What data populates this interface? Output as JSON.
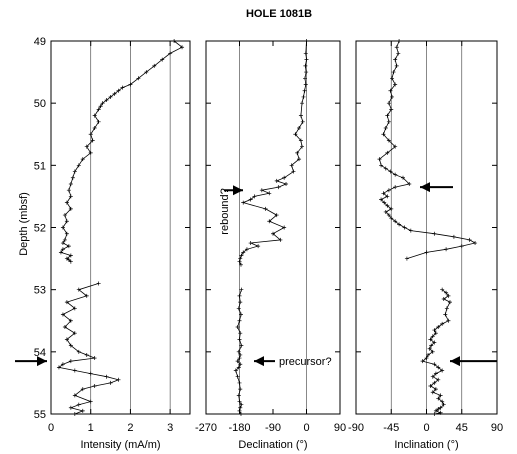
{
  "chart_data": {
    "title": "HOLE 1081B",
    "ylabel": "Depth (mbsf)",
    "y_ticks": [
      "49",
      "50",
      "51",
      "52",
      "53",
      "54",
      "55"
    ],
    "ylim": [
      49,
      55
    ],
    "y_inverted": true,
    "line_color": "#000000",
    "gridlines": "vertical",
    "panels": [
      {
        "type": "line",
        "xlabel": "Intensity (mA/m)",
        "xlim": [
          0,
          3.5
        ],
        "x_ticks": [
          0,
          1,
          2,
          3
        ],
        "x_tick_labels": [
          "0",
          "1",
          "2",
          "3"
        ],
        "grid_x": [
          1,
          2,
          3
        ],
        "series": [
          {
            "segments": [
              {
                "x": [
                  3.1,
                  3.3,
                  3.0,
                  2.8,
                  2.6,
                  2.4,
                  2.2,
                  2.0,
                  1.8,
                  1.7,
                  1.6,
                  1.5,
                  1.4,
                  1.3,
                  1.25,
                  1.2,
                  1.1,
                  1.2,
                  1.1,
                  1.0,
                  1.05,
                  0.9,
                  1.0,
                  0.8,
                  0.7,
                  0.6,
                  0.55,
                  0.5,
                  0.45,
                  0.5,
                  0.4,
                  0.5,
                  0.35,
                  0.4,
                  0.3,
                  0.4,
                  0.35,
                  0.3,
                  0.45,
                  0.3,
                  0.25,
                  0.5,
                  0.4,
                  0.45,
                  0.5
                ],
                "depth": [
                  49.0,
                  49.1,
                  49.2,
                  49.3,
                  49.4,
                  49.5,
                  49.6,
                  49.7,
                  49.75,
                  49.8,
                  49.85,
                  49.9,
                  49.95,
                  50.0,
                  50.05,
                  50.1,
                  50.2,
                  50.3,
                  50.4,
                  50.5,
                  50.6,
                  50.7,
                  50.8,
                  50.9,
                  51.0,
                  51.1,
                  51.2,
                  51.3,
                  51.4,
                  51.5,
                  51.6,
                  51.7,
                  51.8,
                  51.9,
                  52.0,
                  52.1,
                  52.2,
                  52.25,
                  52.3,
                  52.35,
                  52.4,
                  52.45,
                  52.5,
                  52.52,
                  52.55
                ]
              },
              {
                "x": [
                  1.2,
                  0.7,
                  0.9,
                  0.4,
                  0.6,
                  0.3,
                  0.5,
                  0.35,
                  0.6,
                  0.4,
                  0.5,
                  0.7,
                  0.9,
                  1.1,
                  0.5,
                  0.3,
                  0.2,
                  0.6,
                  1.0,
                  1.4,
                  1.7,
                  1.5,
                  1.1,
                  0.8,
                  0.6,
                  1.0,
                  0.7,
                  0.5,
                  0.8,
                  0.6
                ],
                "depth": [
                  52.9,
                  53.0,
                  53.1,
                  53.2,
                  53.3,
                  53.4,
                  53.5,
                  53.6,
                  53.7,
                  53.8,
                  53.9,
                  54.0,
                  54.05,
                  54.1,
                  54.15,
                  54.2,
                  54.25,
                  54.3,
                  54.35,
                  54.4,
                  54.45,
                  54.5,
                  54.55,
                  54.6,
                  54.7,
                  54.8,
                  54.85,
                  54.9,
                  54.95,
                  55.0
                ]
              }
            ]
          }
        ],
        "annotations": [
          {
            "type": "arrow",
            "depth": 54.15,
            "pointing": "right",
            "side": "left"
          }
        ]
      },
      {
        "type": "line",
        "xlabel": "Declination (°)",
        "xlim": [
          -270,
          90
        ],
        "x_ticks": [
          -270,
          -180,
          -90,
          0,
          90
        ],
        "x_tick_labels": [
          "-270",
          "-180",
          "-90",
          "0",
          "90"
        ],
        "grid_x": [
          -180,
          0
        ],
        "series": [
          {
            "segments": [
              {
                "x": [
                  0,
                  -2,
                  0,
                  -3,
                  -1,
                  -4,
                  -2,
                  -5,
                  -8,
                  -12,
                  -15,
                  -10,
                  -20,
                  -30,
                  -15,
                  -12,
                  -25,
                  -20,
                  -40,
                  -35,
                  -60,
                  -80,
                  -55,
                  -75,
                  -120,
                  -100,
                  -140,
                  -150,
                  -170,
                  -110,
                  -80,
                  -100,
                  -60,
                  -90,
                  -70,
                  -150,
                  -130,
                  -160,
                  -170,
                  -175,
                  -178,
                  -180,
                  -176
                ],
                "depth": [
                  49.0,
                  49.2,
                  49.3,
                  49.4,
                  49.5,
                  49.6,
                  49.7,
                  49.8,
                  49.9,
                  50.0,
                  50.2,
                  50.3,
                  50.4,
                  50.5,
                  50.6,
                  50.7,
                  50.8,
                  50.9,
                  51.0,
                  51.1,
                  51.2,
                  51.25,
                  51.3,
                  51.35,
                  51.4,
                  51.45,
                  51.5,
                  51.55,
                  51.6,
                  51.7,
                  51.8,
                  51.9,
                  52.0,
                  52.1,
                  52.2,
                  52.25,
                  52.3,
                  52.35,
                  52.4,
                  52.45,
                  52.5,
                  52.55,
                  52.6
                ]
              },
              {
                "x": [
                  -175,
                  -180,
                  -178,
                  -182,
                  -176,
                  -180,
                  -185,
                  -178,
                  -180,
                  -175,
                  -182,
                  -178,
                  -180,
                  -185,
                  -178,
                  -182,
                  -190,
                  -185,
                  -180,
                  -178,
                  -182,
                  -180,
                  -175,
                  -178,
                  -180,
                  -176
                ],
                "depth": [
                  53.0,
                  53.1,
                  53.2,
                  53.3,
                  53.4,
                  53.5,
                  53.6,
                  53.7,
                  53.8,
                  53.9,
                  54.0,
                  54.05,
                  54.1,
                  54.15,
                  54.2,
                  54.25,
                  54.3,
                  54.4,
                  54.5,
                  54.6,
                  54.7,
                  54.8,
                  54.85,
                  54.9,
                  54.95,
                  55.0
                ]
              }
            ]
          }
        ],
        "annotations": [
          {
            "type": "arrow",
            "depth": 51.4,
            "pointing": "right",
            "label": "rebound?",
            "label_rotated": true
          },
          {
            "type": "arrow",
            "depth": 54.15,
            "pointing": "left",
            "label": "precursor?"
          }
        ]
      },
      {
        "type": "line",
        "xlabel": "Inclination (°)",
        "xlim": [
          -90,
          90
        ],
        "x_ticks": [
          -90,
          -45,
          0,
          45,
          90
        ],
        "x_tick_labels": [
          "-90",
          "-45",
          "0",
          "45",
          "90"
        ],
        "grid_x": [
          -45,
          0,
          45
        ],
        "series": [
          {
            "segments": [
              {
                "x": [
                  -35,
                  -38,
                  -36,
                  -40,
                  -38,
                  -42,
                  -44,
                  -40,
                  -46,
                  -44,
                  -48,
                  -45,
                  -50,
                  -48,
                  -52,
                  -55,
                  -48,
                  -40,
                  -50,
                  -60,
                  -58,
                  -52,
                  -46,
                  -40,
                  -30,
                  -22,
                  -40,
                  -48,
                  -55,
                  -50,
                  -58,
                  -54,
                  -50,
                  -45,
                  -52,
                  -48,
                  -45,
                  -40,
                  -35,
                  -28,
                  -20,
                  10,
                  35,
                  55,
                  62,
                  45,
                  25,
                  0,
                  -25
                ],
                "depth": [
                  49.0,
                  49.1,
                  49.2,
                  49.3,
                  49.4,
                  49.5,
                  49.6,
                  49.7,
                  49.8,
                  49.9,
                  50.0,
                  50.1,
                  50.2,
                  50.3,
                  50.4,
                  50.5,
                  50.6,
                  50.7,
                  50.8,
                  50.9,
                  51.0,
                  51.05,
                  51.1,
                  51.15,
                  51.2,
                  51.3,
                  51.35,
                  51.4,
                  51.45,
                  51.5,
                  51.55,
                  51.6,
                  51.65,
                  51.7,
                  51.75,
                  51.8,
                  51.85,
                  51.9,
                  51.95,
                  52.0,
                  52.05,
                  52.1,
                  52.15,
                  52.2,
                  52.25,
                  52.3,
                  52.35,
                  52.4,
                  52.5
                ]
              },
              {
                "x": [
                  20,
                  25,
                  28,
                  22,
                  30,
                  26,
                  24,
                  28,
                  20,
                  15,
                  10,
                  12,
                  8,
                  5,
                  10,
                  6,
                  4,
                  8,
                  2,
                  0,
                  -5,
                  10,
                  15,
                  20,
                  12,
                  8,
                  15,
                  10,
                  5,
                  12,
                  8,
                  18,
                  15,
                  20,
                  22,
                  18,
                  15,
                  12,
                  18,
                  10
                ],
                "depth": [
                  53.0,
                  53.05,
                  53.1,
                  53.15,
                  53.2,
                  53.3,
                  53.4,
                  53.5,
                  53.55,
                  53.6,
                  53.65,
                  53.7,
                  53.75,
                  53.8,
                  53.85,
                  53.9,
                  53.95,
                  54.0,
                  54.05,
                  54.1,
                  54.15,
                  54.2,
                  54.25,
                  54.3,
                  54.35,
                  54.4,
                  54.45,
                  54.5,
                  54.55,
                  54.6,
                  54.65,
                  54.7,
                  54.75,
                  54.8,
                  54.85,
                  54.9,
                  54.92,
                  54.95,
                  54.98,
                  55.0
                ]
              }
            ]
          }
        ],
        "annotations": [
          {
            "type": "arrow",
            "depth": 51.35,
            "pointing": "left"
          },
          {
            "type": "arrow",
            "depth": 54.15,
            "pointing": "left"
          }
        ]
      }
    ]
  }
}
